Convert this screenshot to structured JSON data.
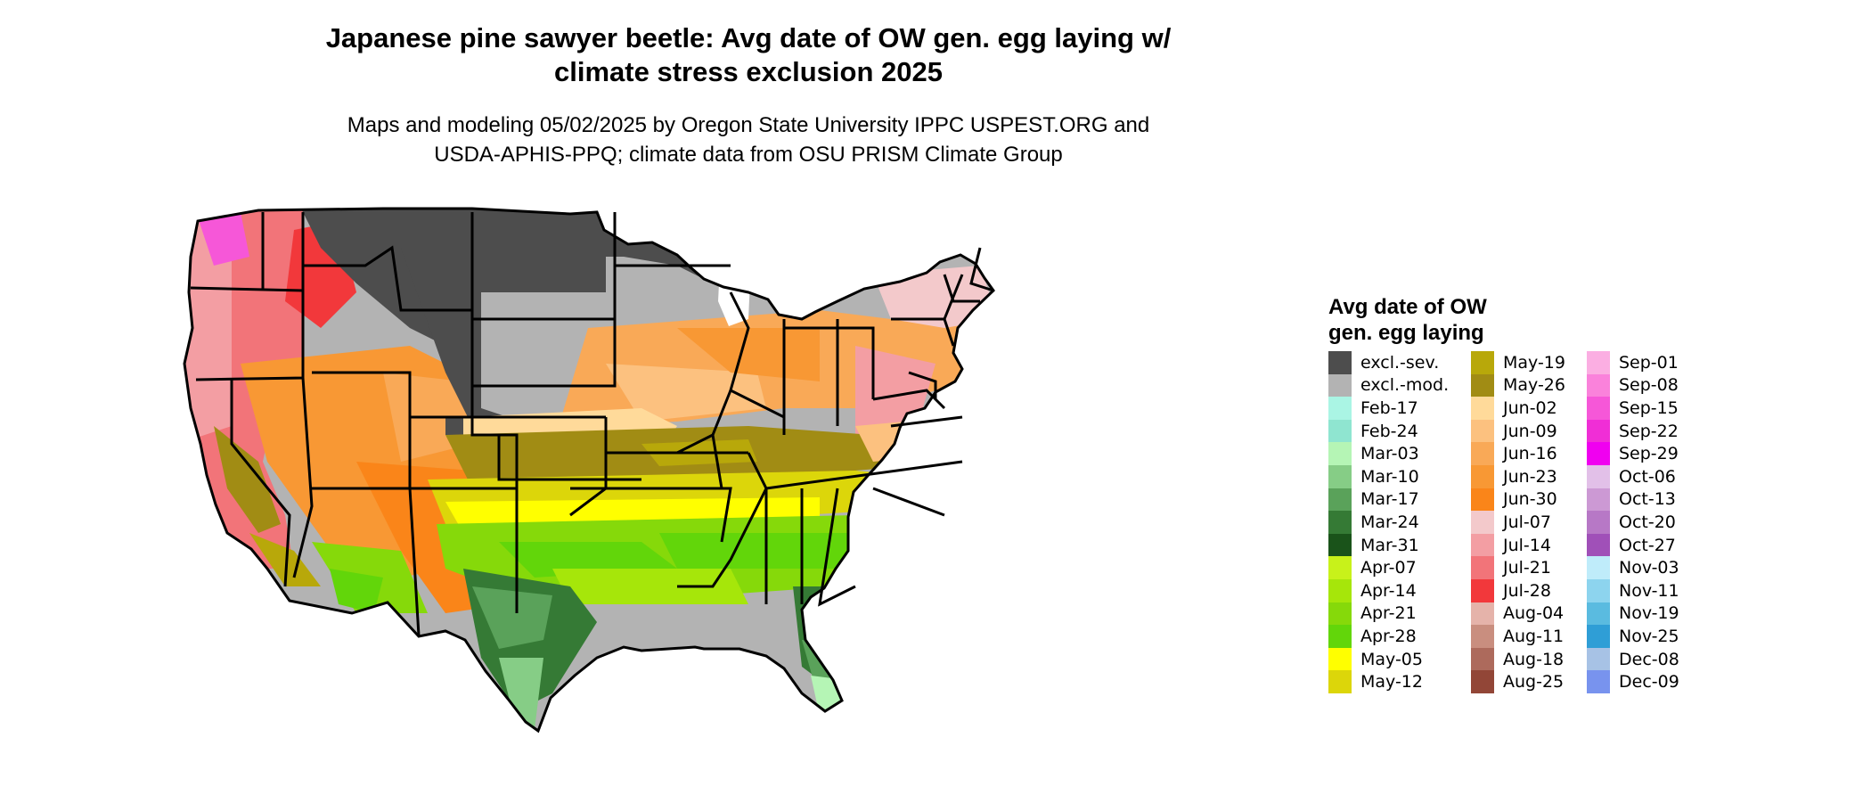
{
  "title_lines": [
    "Japanese pine sawyer beetle: Avg date of OW gen. egg laying w/",
    "climate stress exclusion 2025"
  ],
  "subtitle_lines": [
    "Maps and modeling 05/02/2025 by Oregon State University IPPC USPEST.ORG and",
    "USDA-APHIS-PPQ; climate data from OSU PRISM Climate Group"
  ],
  "legend": {
    "title_lines": [
      "Avg date of OW",
      "gen. egg laying"
    ],
    "columns": [
      [
        {
          "label": "excl.-sev.",
          "color": "#4d4d4d"
        },
        {
          "label": "excl.-mod.",
          "color": "#b3b3b3"
        },
        {
          "label": "Feb-17",
          "color": "#aaf5e4"
        },
        {
          "label": "Feb-24",
          "color": "#8fe5d0"
        },
        {
          "label": "Mar-03",
          "color": "#b5f5b5"
        },
        {
          "label": "Mar-10",
          "color": "#86cd86"
        },
        {
          "label": "Mar-17",
          "color": "#5aa25a"
        },
        {
          "label": "Mar-24",
          "color": "#357a35"
        },
        {
          "label": "Mar-31",
          "color": "#1a531a"
        },
        {
          "label": "Apr-07",
          "color": "#c8f21a"
        },
        {
          "label": "Apr-14",
          "color": "#a6e60a"
        },
        {
          "label": "Apr-21",
          "color": "#86d90a"
        },
        {
          "label": "Apr-28",
          "color": "#62d60a"
        },
        {
          "label": "May-05",
          "color": "#ffff00"
        },
        {
          "label": "May-12",
          "color": "#dcd60a"
        }
      ],
      [
        {
          "label": "May-19",
          "color": "#b8a80a"
        },
        {
          "label": "May-26",
          "color": "#a18c14"
        },
        {
          "label": "Jun-02",
          "color": "#ffda9a"
        },
        {
          "label": "Jun-09",
          "color": "#fcc17f"
        },
        {
          "label": "Jun-16",
          "color": "#f9a957"
        },
        {
          "label": "Jun-23",
          "color": "#f89834"
        },
        {
          "label": "Jun-30",
          "color": "#fa8519"
        },
        {
          "label": "Jul-07",
          "color": "#f3c9cb"
        },
        {
          "label": "Jul-14",
          "color": "#f39ea3"
        },
        {
          "label": "Jul-21",
          "color": "#f27479"
        },
        {
          "label": "Jul-28",
          "color": "#f2383b"
        },
        {
          "label": "Aug-04",
          "color": "#e5b3aa"
        },
        {
          "label": "Aug-11",
          "color": "#c98e7f"
        },
        {
          "label": "Aug-18",
          "color": "#ad6a5c"
        },
        {
          "label": "Aug-25",
          "color": "#924637"
        }
      ],
      [
        {
          "label": "Sep-01",
          "color": "#fbaee2"
        },
        {
          "label": "Sep-08",
          "color": "#fa82db"
        },
        {
          "label": "Sep-15",
          "color": "#f657d8"
        },
        {
          "label": "Sep-22",
          "color": "#f02ed6"
        },
        {
          "label": "Sep-29",
          "color": "#f000f0"
        },
        {
          "label": "Oct-06",
          "color": "#e2c0e8"
        },
        {
          "label": "Oct-13",
          "color": "#cc99d4"
        },
        {
          "label": "Oct-20",
          "color": "#b778c6"
        },
        {
          "label": "Oct-27",
          "color": "#a050b8"
        },
        {
          "label": "Nov-03",
          "color": "#bfecfa"
        },
        {
          "label": "Nov-11",
          "color": "#8dd4ee"
        },
        {
          "label": "Nov-19",
          "color": "#5abbe0"
        },
        {
          "label": "Nov-25",
          "color": "#2f9ed6"
        },
        {
          "label": "Dec-08",
          "color": "#a7c2e5"
        },
        {
          "label": "Dec-09",
          "color": "#7893ee"
        }
      ]
    ]
  }
}
